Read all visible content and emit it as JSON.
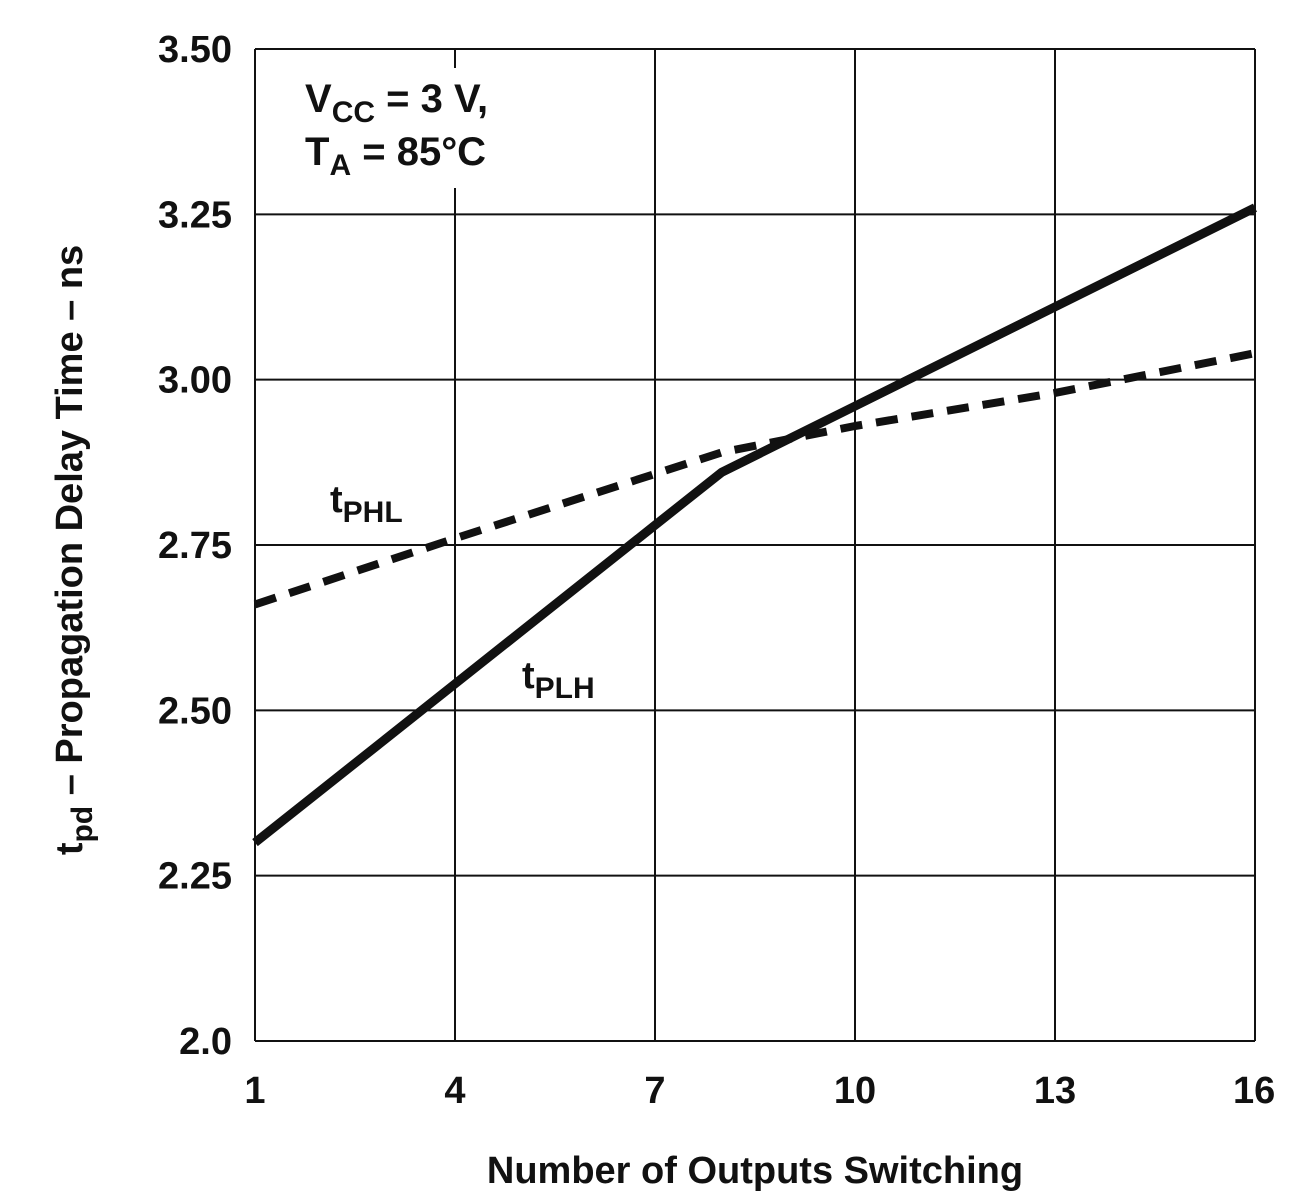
{
  "chart_data": {
    "type": "line",
    "title": "",
    "xlabel": "Number of Outputs Switching",
    "ylabel_main": "t",
    "ylabel_sub": "pd",
    "ylabel_rest": " – Propagation Delay Time – ns",
    "x_ticks": [
      1,
      4,
      7,
      10,
      13,
      16
    ],
    "x_tick_labels": [
      "1",
      "4",
      "7",
      "10",
      "13",
      "16"
    ],
    "y_ticks": [
      2.0,
      2.25,
      2.5,
      2.75,
      3.0,
      3.25,
      3.5
    ],
    "y_tick_labels": [
      "2.0",
      "2.25",
      "2.50",
      "2.75",
      "3.00",
      "3.25",
      "3.50"
    ],
    "xlim": [
      1,
      16
    ],
    "ylim": [
      2.0,
      3.5
    ],
    "grid": true,
    "conditions": [
      {
        "main": "V",
        "sub": "CC",
        "rest": " = 3 V,"
      },
      {
        "main": "T",
        "sub": "A",
        "rest": " = 85°C"
      }
    ],
    "series": [
      {
        "name": "tPHL",
        "label_main": "t",
        "label_sub": "PHL",
        "style": "dashed",
        "x": [
          1,
          4,
          8,
          10,
          13,
          16
        ],
        "y": [
          2.66,
          2.76,
          2.89,
          2.93,
          2.98,
          3.04
        ]
      },
      {
        "name": "tPLH",
        "label_main": "t",
        "label_sub": "PLH",
        "style": "solid",
        "x": [
          1,
          4,
          7,
          8,
          10,
          13,
          16
        ],
        "y": [
          2.3,
          2.54,
          2.78,
          2.86,
          2.96,
          3.11,
          3.26
        ]
      }
    ],
    "line_color": "#111111",
    "grid_color": "#111111"
  }
}
